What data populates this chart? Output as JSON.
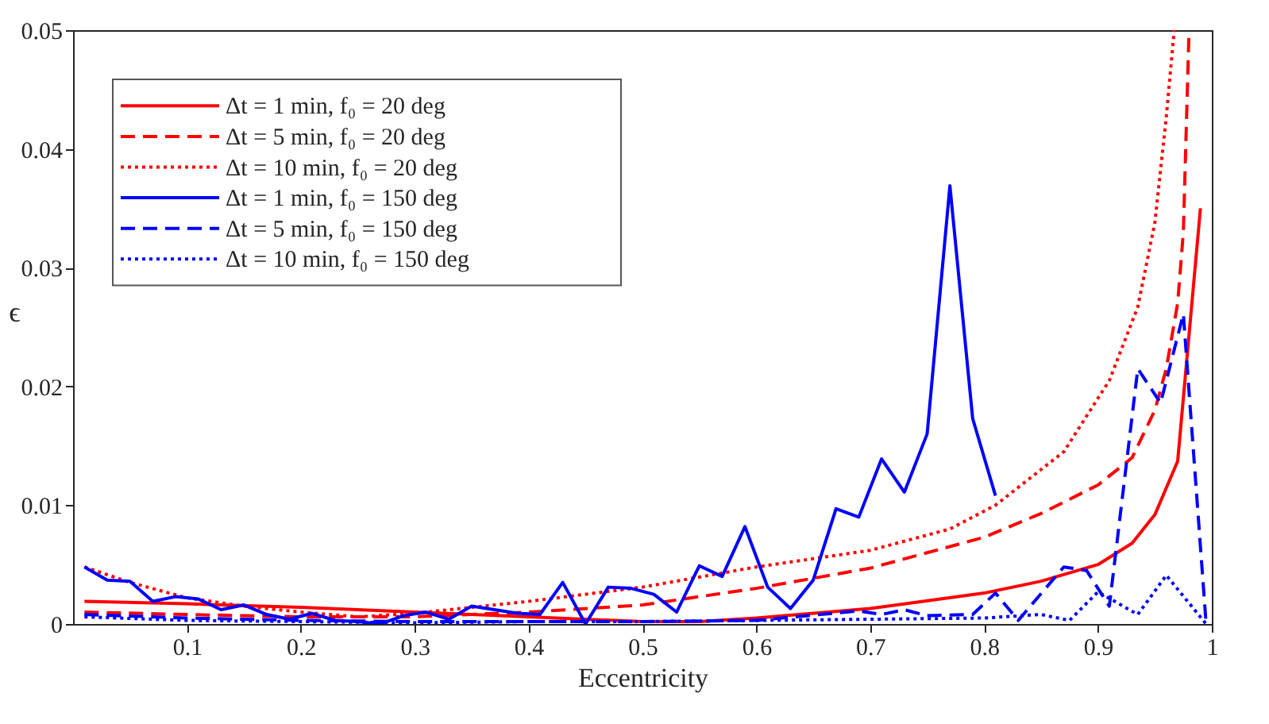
{
  "chart_data": {
    "type": "line",
    "xlabel": "Eccentricity",
    "ylabel": "ϵ",
    "xlim": [
      0,
      1
    ],
    "ylim": [
      0,
      0.05
    ],
    "xticks": [
      0.1,
      0.2,
      0.3,
      0.4,
      0.5,
      0.6,
      0.7,
      0.8,
      0.9,
      1
    ],
    "yticks": [
      0,
      0.01,
      0.02,
      0.03,
      0.04,
      0.05
    ],
    "grid": false,
    "legend": "top left",
    "marker": "none",
    "series": [
      {
        "name": "Δt = 1 min, f₀ = 20 deg",
        "color": "#ff0000",
        "line_style": "solid",
        "x": [
          0.01,
          0.1,
          0.2,
          0.3,
          0.4,
          0.5,
          0.55,
          0.6,
          0.7,
          0.8,
          0.85,
          0.9,
          0.93,
          0.95,
          0.97,
          0.99
        ],
        "values": [
          0.0019,
          0.0017,
          0.0014,
          0.001,
          0.0006,
          0.0002,
          0.0002,
          0.0005,
          0.0013,
          0.0026,
          0.0036,
          0.005,
          0.0068,
          0.0092,
          0.0137,
          0.035
        ]
      },
      {
        "name": "Δt = 5 min, f₀ = 20 deg",
        "color": "#ff0000",
        "line_style": "dashed",
        "x": [
          0.01,
          0.1,
          0.2,
          0.3,
          0.4,
          0.5,
          0.6,
          0.7,
          0.8,
          0.85,
          0.9,
          0.93,
          0.95,
          0.96,
          0.97,
          0.975,
          0.98
        ],
        "values": [
          0.001,
          0.0008,
          0.0006,
          0.0006,
          0.001,
          0.0016,
          0.003,
          0.0047,
          0.0073,
          0.0093,
          0.0117,
          0.014,
          0.018,
          0.0215,
          0.027,
          0.033,
          0.05
        ]
      },
      {
        "name": "Δt = 10 min, f₀ = 20 deg",
        "color": "#ff0000",
        "line_style": "dotted",
        "x": [
          0.01,
          0.05,
          0.1,
          0.15,
          0.2,
          0.25,
          0.3,
          0.4,
          0.5,
          0.6,
          0.7,
          0.77,
          0.81,
          0.87,
          0.91,
          0.935,
          0.95,
          0.96,
          0.967
        ],
        "values": [
          0.0048,
          0.0035,
          0.0022,
          0.0015,
          0.001,
          0.0006,
          0.0009,
          0.0019,
          0.0031,
          0.0048,
          0.0062,
          0.008,
          0.01,
          0.0145,
          0.0205,
          0.0267,
          0.0338,
          0.0427,
          0.05
        ]
      },
      {
        "name": "Δt = 1 min, f₀ = 150 deg",
        "color": "#0000ff",
        "line_style": "solid",
        "x": [
          0.01,
          0.03,
          0.05,
          0.07,
          0.09,
          0.11,
          0.13,
          0.15,
          0.17,
          0.19,
          0.21,
          0.23,
          0.25,
          0.27,
          0.29,
          0.31,
          0.33,
          0.35,
          0.37,
          0.39,
          0.41,
          0.43,
          0.45,
          0.47,
          0.49,
          0.51,
          0.53,
          0.55,
          0.57,
          0.59,
          0.61,
          0.63,
          0.65,
          0.67,
          0.69,
          0.71,
          0.73,
          0.75,
          0.77,
          0.79,
          0.81
        ],
        "values": [
          0.0048,
          0.0037,
          0.0036,
          0.0019,
          0.0023,
          0.0021,
          0.0012,
          0.0016,
          0.0008,
          0.0004,
          0.0009,
          0.0003,
          0.0002,
          0.0,
          0.0007,
          0.001,
          0.0004,
          0.0015,
          0.0012,
          0.0009,
          0.0008,
          0.0035,
          0.0,
          0.0031,
          0.003,
          0.0025,
          0.001,
          0.0049,
          0.004,
          0.0082,
          0.0031,
          0.0013,
          0.0037,
          0.0097,
          0.009,
          0.0139,
          0.0111,
          0.016,
          0.0369,
          0.0173,
          0.0108
        ]
      },
      {
        "name": "Δt = 5 min, f₀ = 150 deg",
        "color": "#0000ff",
        "line_style": "dashed",
        "x": [
          0.01,
          0.1,
          0.2,
          0.3,
          0.4,
          0.5,
          0.6,
          0.69,
          0.71,
          0.73,
          0.75,
          0.79,
          0.81,
          0.83,
          0.87,
          0.89,
          0.91,
          0.935,
          0.955,
          0.975,
          0.995
        ],
        "values": [
          0.0008,
          0.0005,
          0.0003,
          0.0002,
          0.0002,
          0.0002,
          0.0003,
          0.0011,
          0.0008,
          0.0012,
          0.0007,
          0.0008,
          0.0026,
          0.0003,
          0.0048,
          0.0045,
          0.0015,
          0.0215,
          0.0186,
          0.0261,
          0.0
        ]
      },
      {
        "name": "Δt = 10 min, f₀ = 150 deg",
        "color": "#0000ff",
        "line_style": "dotted",
        "x": [
          0.01,
          0.1,
          0.2,
          0.3,
          0.4,
          0.5,
          0.6,
          0.7,
          0.8,
          0.85,
          0.875,
          0.9,
          0.935,
          0.96,
          0.995
        ],
        "values": [
          0.0006,
          0.0003,
          0.0002,
          0.0001,
          0.0002,
          0.0002,
          0.0003,
          0.0004,
          0.0005,
          0.0008,
          0.0003,
          0.0027,
          0.0008,
          0.0041,
          0.0
        ]
      }
    ]
  }
}
